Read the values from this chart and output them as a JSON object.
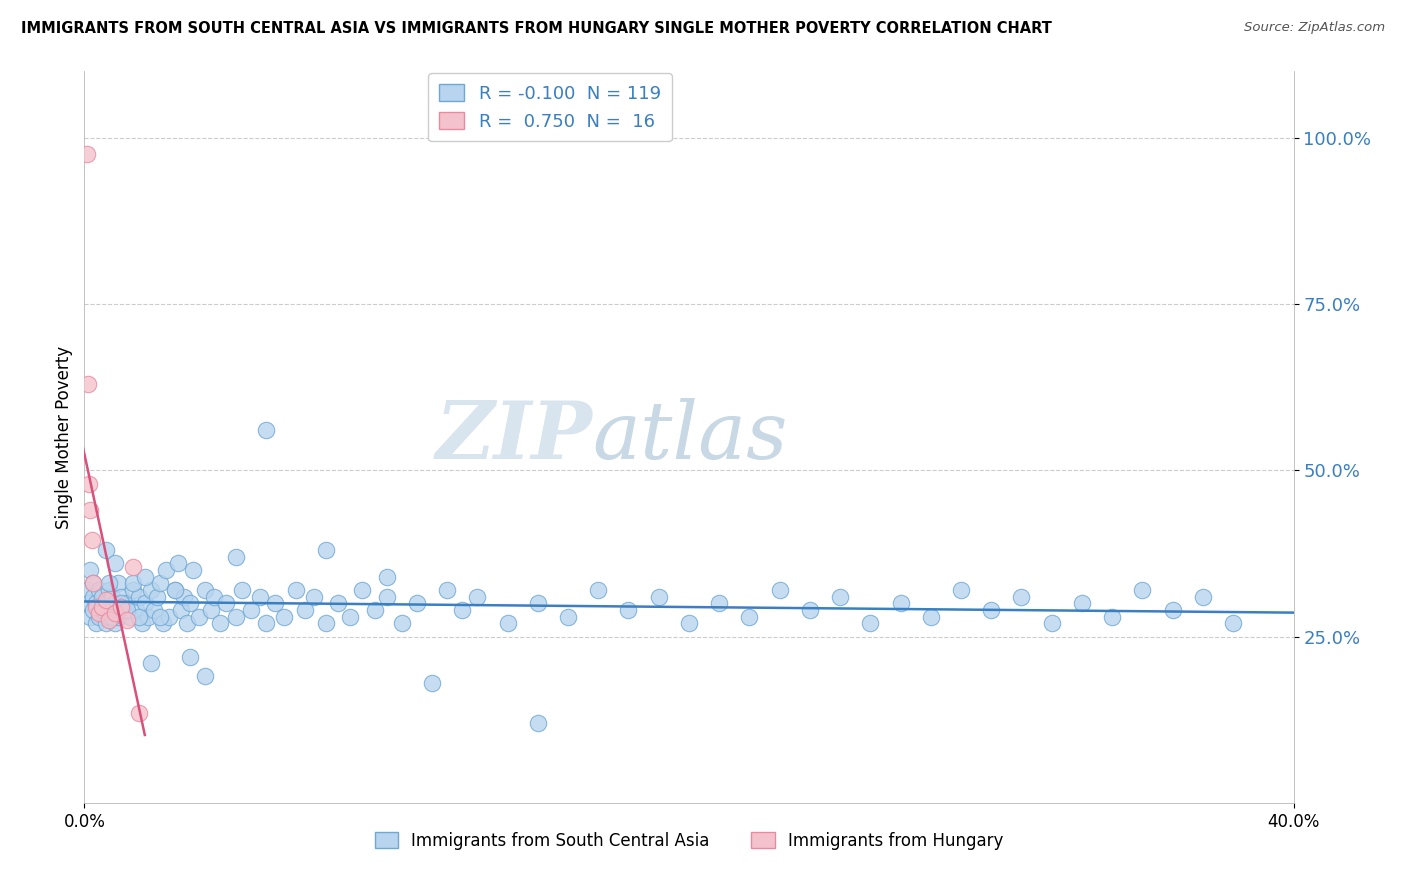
{
  "title": "IMMIGRANTS FROM SOUTH CENTRAL ASIA VS IMMIGRANTS FROM HUNGARY SINGLE MOTHER POVERTY CORRELATION CHART",
  "source": "Source: ZipAtlas.com",
  "ylabel": "Single Mother Poverty",
  "y_ticks": [
    0.25,
    0.5,
    0.75,
    1.0
  ],
  "y_tick_labels": [
    "25.0%",
    "50.0%",
    "75.0%",
    "100.0%"
  ],
  "xlim": [
    0.0,
    0.4
  ],
  "ylim": [
    0.0,
    1.1
  ],
  "series1_color": "#b8d4ee",
  "series1_edge": "#6fa8d4",
  "series2_color": "#f4c2cc",
  "series2_edge": "#e88aa0",
  "trendline1_color": "#3a7fc1",
  "trendline2_color": "#d9507a",
  "watermark_zip": "ZIP",
  "watermark_atlas": "atlas",
  "watermark_color": "#d0dde8",
  "R1": -0.1,
  "N1": 119,
  "R2": 0.75,
  "N2": 16,
  "legend1_r": "-0.100",
  "legend1_n": "119",
  "legend2_r": "0.750",
  "legend2_n": "16",
  "scatter1_x": [
    0.0012,
    0.0015,
    0.002,
    0.002,
    0.003,
    0.003,
    0.003,
    0.004,
    0.004,
    0.005,
    0.005,
    0.006,
    0.006,
    0.007,
    0.007,
    0.008,
    0.008,
    0.009,
    0.009,
    0.01,
    0.01,
    0.011,
    0.011,
    0.012,
    0.013,
    0.014,
    0.015,
    0.016,
    0.017,
    0.018,
    0.019,
    0.02,
    0.021,
    0.022,
    0.023,
    0.024,
    0.025,
    0.026,
    0.027,
    0.028,
    0.03,
    0.031,
    0.032,
    0.033,
    0.034,
    0.035,
    0.036,
    0.038,
    0.04,
    0.042,
    0.043,
    0.045,
    0.047,
    0.05,
    0.052,
    0.055,
    0.058,
    0.06,
    0.063,
    0.066,
    0.07,
    0.073,
    0.076,
    0.08,
    0.084,
    0.088,
    0.092,
    0.096,
    0.1,
    0.105,
    0.11,
    0.115,
    0.12,
    0.125,
    0.13,
    0.14,
    0.15,
    0.16,
    0.17,
    0.18,
    0.19,
    0.2,
    0.21,
    0.22,
    0.23,
    0.24,
    0.25,
    0.26,
    0.27,
    0.28,
    0.29,
    0.3,
    0.31,
    0.32,
    0.33,
    0.34,
    0.35,
    0.36,
    0.37,
    0.38,
    0.007,
    0.008,
    0.009,
    0.01,
    0.012,
    0.014,
    0.016,
    0.018,
    0.02,
    0.022,
    0.025,
    0.03,
    0.035,
    0.04,
    0.05,
    0.06,
    0.08,
    0.1,
    0.15
  ],
  "scatter1_y": [
    0.32,
    0.3,
    0.35,
    0.28,
    0.33,
    0.29,
    0.31,
    0.3,
    0.27,
    0.32,
    0.28,
    0.31,
    0.29,
    0.3,
    0.27,
    0.32,
    0.28,
    0.31,
    0.29,
    0.3,
    0.27,
    0.33,
    0.28,
    0.31,
    0.29,
    0.3,
    0.28,
    0.32,
    0.29,
    0.31,
    0.27,
    0.3,
    0.28,
    0.32,
    0.29,
    0.31,
    0.33,
    0.27,
    0.35,
    0.28,
    0.32,
    0.36,
    0.29,
    0.31,
    0.27,
    0.3,
    0.35,
    0.28,
    0.32,
    0.29,
    0.31,
    0.27,
    0.3,
    0.28,
    0.32,
    0.29,
    0.31,
    0.27,
    0.3,
    0.28,
    0.32,
    0.29,
    0.31,
    0.27,
    0.3,
    0.28,
    0.32,
    0.29,
    0.31,
    0.27,
    0.3,
    0.18,
    0.32,
    0.29,
    0.31,
    0.27,
    0.3,
    0.28,
    0.32,
    0.29,
    0.31,
    0.27,
    0.3,
    0.28,
    0.32,
    0.29,
    0.31,
    0.27,
    0.3,
    0.28,
    0.32,
    0.29,
    0.31,
    0.27,
    0.3,
    0.28,
    0.32,
    0.29,
    0.31,
    0.27,
    0.38,
    0.33,
    0.28,
    0.36,
    0.3,
    0.29,
    0.33,
    0.28,
    0.34,
    0.21,
    0.28,
    0.32,
    0.22,
    0.19,
    0.37,
    0.56,
    0.38,
    0.34,
    0.12
  ],
  "scatter2_x": [
    0.0008,
    0.0012,
    0.0015,
    0.002,
    0.0025,
    0.003,
    0.004,
    0.005,
    0.006,
    0.007,
    0.008,
    0.01,
    0.012,
    0.014,
    0.016,
    0.018
  ],
  "scatter2_y": [
    0.975,
    0.63,
    0.48,
    0.44,
    0.395,
    0.33,
    0.295,
    0.285,
    0.295,
    0.305,
    0.275,
    0.285,
    0.295,
    0.275,
    0.355,
    0.135
  ]
}
